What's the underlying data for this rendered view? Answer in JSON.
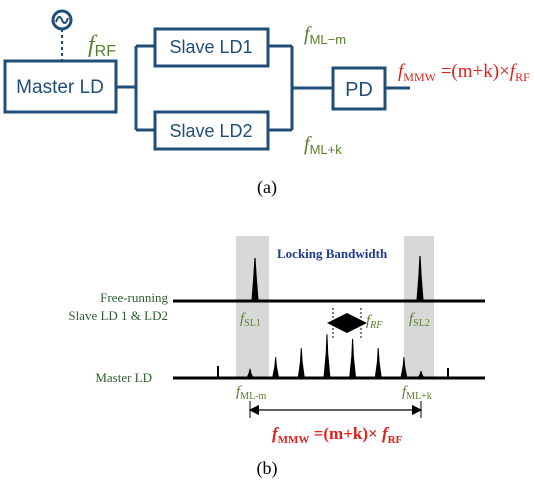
{
  "colors": {
    "box": "#1f4e79",
    "green": "#5a7f2a",
    "red": "#e0201a",
    "navy": "#1f3a93",
    "shade": "#d8d8d8",
    "black": "#000000"
  },
  "panel_a": {
    "master_label": "Master LD",
    "slave1_label": "Slave LD1",
    "slave2_label": "Slave LD2",
    "pd_label": "PD",
    "f_symbol": "f",
    "rf_sub": "RF",
    "ml_minus_sub": "ML−m",
    "ml_plus_sub": "ML+k",
    "mmw_sub": "MMW",
    "mmw_eq": " =(m+k)×",
    "mmw_eq_sub": "RF",
    "caption": "(a)",
    "icons": [
      "rf-source-icon"
    ]
  },
  "panel_b": {
    "locking_bandwidth": "Locking Bandwidth",
    "free_running_line1": "Free-running",
    "free_running_line2": "Slave LD 1 & LD2",
    "master_label": "Master LD",
    "f_symbol": "f",
    "sl1_sub": "SL1",
    "sl2_sub": "SL2",
    "rf_sub": "RF",
    "ml_minus_sub": "ML-m",
    "ml_plus_sub": "ML+k",
    "mmw_sub": "MMW",
    "mmw_eq": " =(m+k)× ",
    "mmw_eq_sub": "RF",
    "caption": "(b)",
    "comb_peaks": [
      {
        "pos": 0.0,
        "height": 0.2
      },
      {
        "pos": 0.15,
        "height": 0.45
      },
      {
        "pos": 0.3,
        "height": 0.65
      },
      {
        "pos": 0.45,
        "height": 0.95
      },
      {
        "pos": 0.6,
        "height": 0.85
      },
      {
        "pos": 0.75,
        "height": 0.65
      },
      {
        "pos": 0.9,
        "height": 0.45
      },
      {
        "pos": 1.0,
        "height": 0.15
      }
    ]
  }
}
